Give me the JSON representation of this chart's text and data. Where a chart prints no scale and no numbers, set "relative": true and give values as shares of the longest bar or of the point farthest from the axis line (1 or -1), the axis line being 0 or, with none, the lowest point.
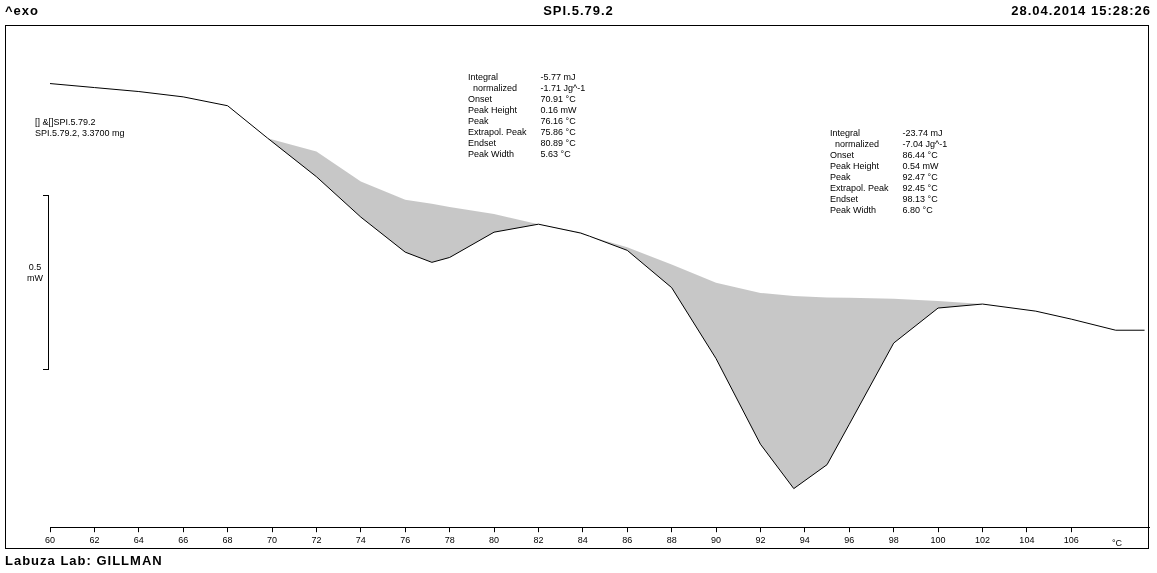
{
  "chart_data": {
    "type": "line",
    "title": "SPI.5.79.2",
    "subtitle": "28.04.2014 15:28:26",
    "xlabel": "°C",
    "relative": true,
    "xlim": [
      60,
      109.5
    ],
    "xticks": [
      60,
      62,
      64,
      66,
      68,
      70,
      72,
      74,
      76,
      78,
      80,
      82,
      84,
      86,
      88,
      90,
      92,
      94,
      96,
      98,
      100,
      102,
      104,
      106
    ],
    "series": [
      {
        "color": "#000000",
        "x": [
          60,
          62,
          64,
          66,
          68,
          69.8,
          72,
          74,
          76,
          77.2,
          78,
          80,
          82,
          83.9,
          84.3,
          86,
          88,
          90,
          92,
          93.5,
          95,
          96,
          98,
          100,
          102,
          104.4,
          106,
          108,
          109.3
        ],
        "values": [
          1,
          0.991,
          0.982,
          0.97,
          0.95,
          0.877,
          0.79,
          0.699,
          0.62,
          0.597,
          0.608,
          0.665,
          0.683,
          0.663,
          0.656,
          0.624,
          0.54,
          0.38,
          0.187,
          0.087,
          0.141,
          0.232,
          0.415,
          0.494,
          0.503,
          0.487,
          0.469,
          0.444,
          0.444
        ],
        "lower": [
          null,
          null,
          null,
          null,
          null,
          0.877,
          0.79,
          0.699,
          0.62,
          0.597,
          0.608,
          0.665,
          0.683,
          0.663,
          0.656,
          0.624,
          0.54,
          0.38,
          0.187,
          0.087,
          0.141,
          0.232,
          0.415,
          0.494,
          0.503,
          0.487,
          null,
          null,
          null
        ],
        "upper": [
          null,
          null,
          null,
          null,
          null,
          0.877,
          0.847,
          0.779,
          0.738,
          0.729,
          0.722,
          0.706,
          0.683,
          0.665,
          0.656,
          0.631,
          0.592,
          0.551,
          0.528,
          0.521,
          0.518,
          0.517,
          0.515,
          0.51,
          0.503,
          0.487,
          null,
          null,
          null
        ]
      }
    ],
    "marker": "none",
    "grid": false,
    "legend": false,
    "annotations": [
      "^exo",
      "[] &[]SPI.5.79.2\nSPI.5.79.2, 3.3700 mg",
      "Integral\t-5.77 mJ\n  normalized\t-1.71 Jg^-1\nOnset\t70.91 °C\nPeak Height\t0.16 mW\nPeak\t76.16 °C\nExtrapol. Peak\t75.86 °C\nEndset\t80.89 °C\nPeak Width\t5.63 °C",
      "Integral\t-23.74 mJ\n  normalized\t-7.04 Jg^-1\nOnset\t86.44 °C\nPeak Height\t0.54 mW\nPeak\t92.47 °C\nExtrapol. Peak\t92.45 °C\nEndset\t98.13 °C\nPeak Width\t6.80 °C",
      "0.5\nmW",
      "Labuza Lab: GILLMAN"
    ]
  }
}
